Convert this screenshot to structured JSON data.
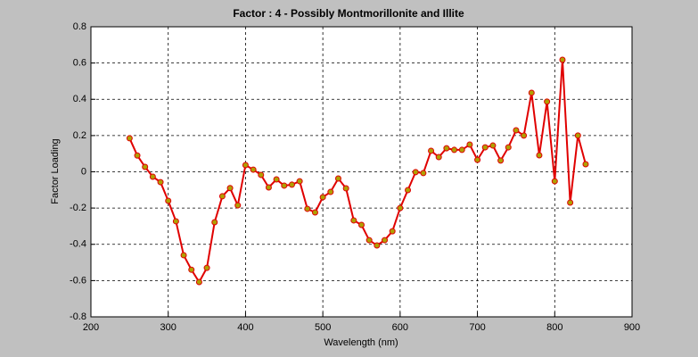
{
  "chart_data": {
    "type": "line",
    "title": "Factor : 4 - Possibly Montmorillonite and Illite",
    "xlabel": "Wavelength (nm)",
    "ylabel": "Factor Loading",
    "x": [
      250,
      260,
      270,
      280,
      290,
      300,
      310,
      320,
      330,
      340,
      350,
      360,
      370,
      380,
      390,
      400,
      410,
      420,
      430,
      440,
      450,
      460,
      470,
      480,
      490,
      500,
      510,
      520,
      530,
      540,
      550,
      560,
      570,
      580,
      590,
      600,
      610,
      620,
      630,
      640,
      650,
      660,
      670,
      680,
      690,
      700,
      710,
      720,
      730,
      740,
      750,
      760,
      770,
      780,
      790,
      800,
      810,
      820,
      830,
      840
    ],
    "series": [
      {
        "color": "#e00000",
        "marker_color": "#b0a000",
        "values": [
          0.185,
          0.09,
          0.027,
          -0.027,
          -0.057,
          -0.16,
          -0.273,
          -0.46,
          -0.54,
          -0.608,
          -0.53,
          -0.278,
          -0.135,
          -0.09,
          -0.185,
          0.037,
          0.012,
          -0.017,
          -0.086,
          -0.042,
          -0.076,
          -0.071,
          -0.052,
          -0.204,
          -0.224,
          -0.14,
          -0.111,
          -0.037,
          -0.091,
          -0.268,
          -0.293,
          -0.377,
          -0.406,
          -0.377,
          -0.328,
          -0.2,
          -0.101,
          -0.002,
          -0.007,
          0.116,
          0.081,
          0.13,
          0.121,
          0.121,
          0.15,
          0.066,
          0.135,
          0.145,
          0.062,
          0.135,
          0.229,
          0.2,
          0.436,
          0.091,
          0.387,
          -0.052,
          0.618,
          -0.17,
          0.2,
          0.042
        ]
      }
    ],
    "xlim": [
      200,
      900
    ],
    "xticks": [
      200,
      300,
      400,
      500,
      600,
      700,
      800,
      900
    ],
    "ylim": [
      -0.8,
      0.8
    ],
    "yticks": [
      -0.8,
      -0.6,
      -0.4,
      -0.2,
      0,
      0.2,
      0.4,
      0.6,
      0.8
    ],
    "grid": true
  }
}
